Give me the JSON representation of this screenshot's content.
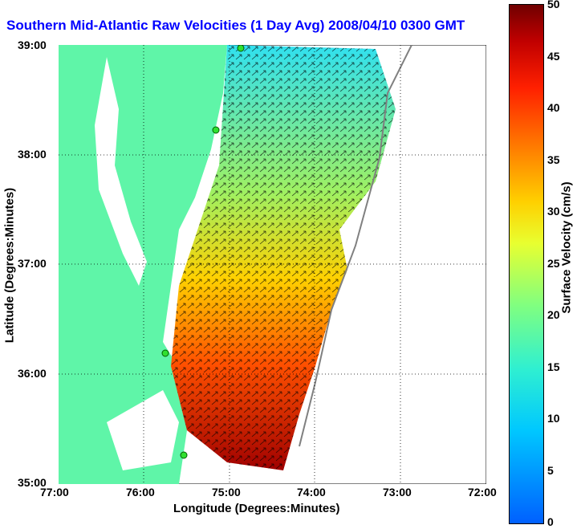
{
  "title": "Southern Mid-Atlantic Raw Velocities (1 Day Avg) 2008/04/10 0300 GMT",
  "axes": {
    "xlabel": "Longitude (Degrees:Minutes)",
    "ylabel": "Latitude (Degrees:Minutes)",
    "x_ticks": [
      "77:00",
      "76:00",
      "75:00",
      "74:00",
      "73:00",
      "72:00"
    ],
    "y_ticks": [
      "39:00",
      "38:00",
      "37:00",
      "36:00",
      "35:00"
    ]
  },
  "colorbar": {
    "label": "Surface Velocity (cm/s)",
    "ticks": [
      "50",
      "45",
      "40",
      "35",
      "30",
      "25",
      "20",
      "15",
      "10",
      "5",
      "0"
    ],
    "min": 0,
    "max": 50
  },
  "colors": {
    "land": "#5ff5a8",
    "water": "#ffffff",
    "title": "#0000ff",
    "station": "#30e030"
  },
  "stations": [
    {
      "lon": -74.87,
      "lat": 38.95
    },
    {
      "lon": -75.1,
      "lat": 38.22
    },
    {
      "lon": -75.7,
      "lat": 36.2
    },
    {
      "lon": -75.5,
      "lat": 35.25
    }
  ]
}
